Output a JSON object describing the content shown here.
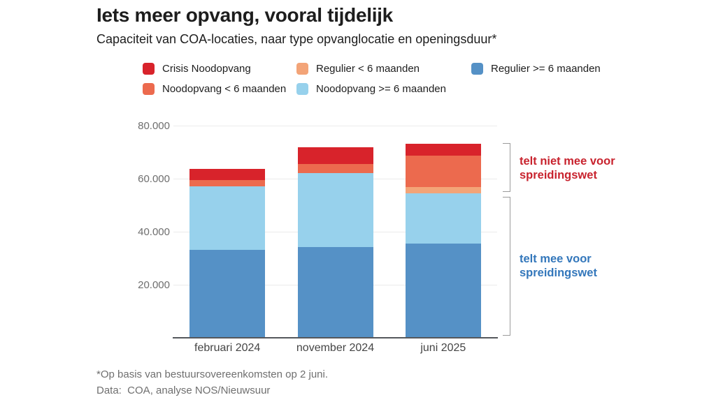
{
  "title": "Iets meer opvang, vooral tijdelijk",
  "subtitle": "Capaciteit van COA-locaties, naar type opvanglocatie en openingsduur*",
  "legend": {
    "items": [
      {
        "label": "Crisis Noodopvang",
        "color": "#d8232b"
      },
      {
        "label": "Regulier < 6 maanden",
        "color": "#f3a478"
      },
      {
        "label": "Regulier >= 6 maanden",
        "color": "#5591c6"
      },
      {
        "label": "Noodopvang < 6 maanden",
        "color": "#ec6a4e"
      },
      {
        "label": "Noodopvang >= 6 maanden",
        "color": "#97d1ec"
      }
    ]
  },
  "chart_data": {
    "type": "bar",
    "stacked": true,
    "title": "Capaciteit van COA-locaties, naar type opvanglocatie en openingsduur",
    "xlabel": "",
    "ylabel": "",
    "categories": [
      "februari 2024",
      "november 2024",
      "juni 2025"
    ],
    "series": [
      {
        "name": "Regulier >= 6 maanden",
        "color": "#5591c6",
        "values": [
          33200,
          34200,
          35500
        ]
      },
      {
        "name": "Noodopvang >= 6 maanden",
        "color": "#97d1ec",
        "values": [
          24000,
          27900,
          19000
        ]
      },
      {
        "name": "Regulier < 6 maanden",
        "color": "#f3a478",
        "values": [
          0,
          0,
          2400
        ]
      },
      {
        "name": "Noodopvang < 6 maanden",
        "color": "#ec6a4e",
        "values": [
          2300,
          3400,
          11800
        ]
      },
      {
        "name": "Crisis Noodopvang",
        "color": "#d8232b",
        "values": [
          4200,
          6300,
          4500
        ]
      }
    ],
    "ylim": [
      0,
      80000
    ],
    "yticks": [
      {
        "value": 20000,
        "label": "20.000"
      },
      {
        "value": 40000,
        "label": "40.000"
      },
      {
        "value": 60000,
        "label": "60.000"
      },
      {
        "value": 80000,
        "label": "80.000"
      }
    ],
    "grid": true,
    "legend_position": "top"
  },
  "annotations": {
    "not_counted": {
      "line1": "telt niet mee voor",
      "line2": "spreidingswet",
      "color": "#c8232e"
    },
    "counted": {
      "line1": "telt mee voor",
      "line2": "spreidingswet",
      "color": "#3377bb"
    }
  },
  "footnotes": {
    "asterisk": "*Op basis van bestuursovereenkomsten op 2 juni.",
    "source": "Data:  COA, analyse NOS/Nieuwsuur"
  }
}
